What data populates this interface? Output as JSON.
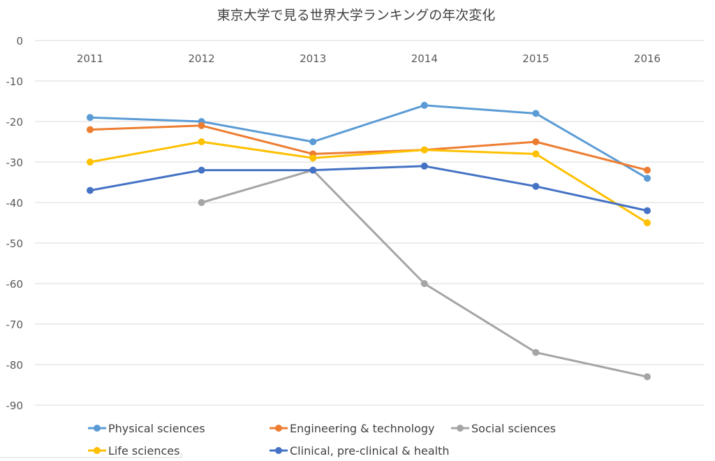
{
  "chart_data": {
    "type": "line",
    "title": "東京大学で見る世界大学ランキングの年次変化",
    "xlabel": "",
    "ylabel": "",
    "categories": [
      "2011",
      "2012",
      "2013",
      "2014",
      "2015",
      "2016"
    ],
    "ylim": [
      -90,
      0
    ],
    "yticks": [
      0,
      -10,
      -20,
      -30,
      -40,
      -50,
      -60,
      -70,
      -80,
      -90
    ],
    "grid": true,
    "legend_position": "bottom",
    "series": [
      {
        "name": "Physical sciences",
        "color": "#5b9bd5",
        "values": [
          -19,
          -20,
          -25,
          -16,
          -18,
          -34
        ]
      },
      {
        "name": "Engineering & technology",
        "color": "#ed7d31",
        "values": [
          -22,
          -21,
          -28,
          -27,
          -25,
          -32
        ]
      },
      {
        "name": "Social sciences",
        "color": "#a5a5a5",
        "values": [
          null,
          -40,
          -32,
          -60,
          -77,
          -83
        ]
      },
      {
        "name": "Life sciences",
        "color": "#ffc000",
        "values": [
          -30,
          -25,
          -29,
          -27,
          -28,
          -45
        ]
      },
      {
        "name": "Clinical, pre-clinical & health",
        "color": "#4472c4",
        "values": [
          -37,
          -32,
          -32,
          -31,
          -36,
          -42
        ]
      }
    ]
  }
}
